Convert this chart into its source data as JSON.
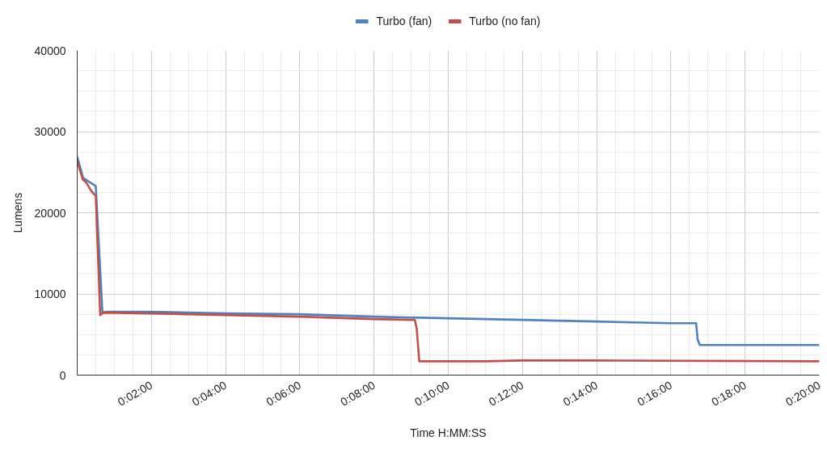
{
  "chart_data": {
    "type": "line",
    "xlabel": "Time H:MM:SS",
    "ylabel": "Lumens",
    "legend": "top",
    "grid": true,
    "line_style": "solid",
    "xlim": [
      0,
      20
    ],
    "ylim": [
      0,
      40000
    ],
    "xticks": [
      {
        "value": 0,
        "label": null
      },
      {
        "value": 0.5,
        "label": null
      },
      {
        "value": 1,
        "label": null
      },
      {
        "value": 1.5,
        "label": null
      },
      {
        "value": 2,
        "label": "0:02:00"
      },
      {
        "value": 2.5,
        "label": null
      },
      {
        "value": 3,
        "label": null
      },
      {
        "value": 3.5,
        "label": null
      },
      {
        "value": 4,
        "label": "0:04:00"
      },
      {
        "value": 4.5,
        "label": null
      },
      {
        "value": 5,
        "label": null
      },
      {
        "value": 5.5,
        "label": null
      },
      {
        "value": 6,
        "label": "0:06:00"
      },
      {
        "value": 6.5,
        "label": null
      },
      {
        "value": 7,
        "label": null
      },
      {
        "value": 7.5,
        "label": null
      },
      {
        "value": 8,
        "label": "0:08:00"
      },
      {
        "value": 8.5,
        "label": null
      },
      {
        "value": 9,
        "label": null
      },
      {
        "value": 9.5,
        "label": null
      },
      {
        "value": 10,
        "label": "0:10:00"
      },
      {
        "value": 10.5,
        "label": null
      },
      {
        "value": 11,
        "label": null
      },
      {
        "value": 11.5,
        "label": null
      },
      {
        "value": 12,
        "label": "0:12:00"
      },
      {
        "value": 12.5,
        "label": null
      },
      {
        "value": 13,
        "label": null
      },
      {
        "value": 13.5,
        "label": null
      },
      {
        "value": 14,
        "label": "0:14:00"
      },
      {
        "value": 14.5,
        "label": null
      },
      {
        "value": 15,
        "label": null
      },
      {
        "value": 15.5,
        "label": null
      },
      {
        "value": 16,
        "label": "0:16:00"
      },
      {
        "value": 16.5,
        "label": null
      },
      {
        "value": 17,
        "label": null
      },
      {
        "value": 17.5,
        "label": null
      },
      {
        "value": 18,
        "label": "0:18:00"
      },
      {
        "value": 18.5,
        "label": null
      },
      {
        "value": 19,
        "label": null
      },
      {
        "value": 19.5,
        "label": null
      },
      {
        "value": 20,
        "label": "0:20:00"
      }
    ],
    "yticks": [
      0,
      {
        "value": 2500,
        "label": null
      },
      {
        "value": 5000,
        "label": null
      },
      {
        "value": 7500,
        "label": null
      },
      10000,
      {
        "value": 12500,
        "label": null
      },
      {
        "value": 15000,
        "label": null
      },
      {
        "value": 17500,
        "label": null
      },
      20000,
      {
        "value": 22500,
        "label": null
      },
      {
        "value": 25000,
        "label": null
      },
      {
        "value": 27500,
        "label": null
      },
      30000,
      {
        "value": 32500,
        "label": null
      },
      {
        "value": 35000,
        "label": null
      },
      {
        "value": 37500,
        "label": null
      },
      40000
    ],
    "series": [
      {
        "name": "Turbo (fan)",
        "color": "#4f81bd",
        "x": [
          0,
          0.16,
          0.5,
          0.68,
          0.8,
          2,
          4,
          6,
          8,
          10,
          12,
          14,
          16,
          16.68,
          16.72,
          16.78,
          18,
          20
        ],
        "values": [
          26900,
          24300,
          23300,
          7700,
          7800,
          7800,
          7600,
          7500,
          7200,
          7000,
          6800,
          6600,
          6400,
          6400,
          4400,
          3700,
          3700,
          3700
        ]
      },
      {
        "name": "Turbo (no fan)",
        "color": "#c0504d",
        "x": [
          0,
          0.15,
          0.25,
          0.3,
          0.38,
          0.45,
          0.5,
          0.62,
          0.7,
          2,
          4,
          6,
          8,
          9.1,
          9.15,
          9.22,
          11,
          12,
          14,
          20
        ],
        "values": [
          26400,
          24100,
          23700,
          23300,
          22700,
          22300,
          22100,
          7400,
          7700,
          7600,
          7400,
          7200,
          6900,
          6800,
          5700,
          1700,
          1700,
          1800,
          1800,
          1700
        ]
      }
    ]
  }
}
